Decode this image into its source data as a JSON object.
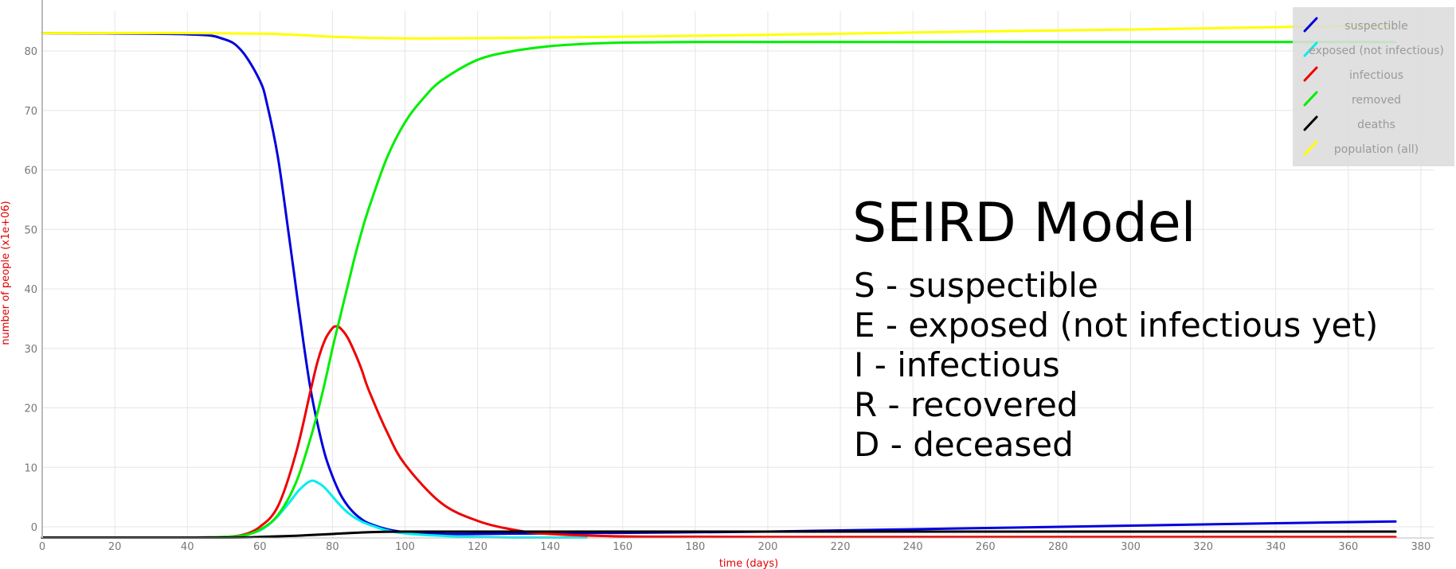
{
  "chart_data": {
    "type": "line",
    "title": "",
    "xlabel": "time (days)",
    "ylabel": "number of people (x1e+06)",
    "xlim": [
      0,
      382
    ],
    "ylim": [
      -1.8,
      86
    ],
    "xticks": [
      0,
      20,
      40,
      60,
      80,
      100,
      120,
      140,
      160,
      180,
      200,
      220,
      240,
      260,
      280,
      300,
      320,
      340,
      360,
      380
    ],
    "yticks": [
      0,
      10,
      20,
      30,
      40,
      50,
      60,
      70,
      80
    ],
    "grid": true,
    "legend_position": "top-right",
    "series": [
      {
        "name": "suspectible",
        "color": "#0000dd",
        "x": [
          0,
          40,
          50,
          55,
          60,
          62,
          65,
          68,
          70,
          72,
          74,
          76,
          78,
          80,
          82,
          84,
          86,
          88,
          90,
          95,
          100,
          110,
          120,
          140,
          200,
          250,
          300,
          340,
          373
        ],
        "y": [
          83.0,
          82.8,
          82.0,
          80.0,
          75.0,
          71.0,
          62.0,
          49.0,
          40.0,
          31.0,
          23.0,
          17.0,
          12.0,
          8.5,
          5.7,
          3.7,
          2.3,
          1.3,
          0.6,
          -0.4,
          -0.9,
          -1.2,
          -1.2,
          -1.1,
          -0.8,
          -0.3,
          0.2,
          0.6,
          0.9
        ]
      },
      {
        "name": "exposed (not infectious)",
        "color": "#00eeee",
        "x": [
          0,
          40,
          50,
          55,
          60,
          64,
          68,
          71,
          74,
          76,
          78,
          80,
          82,
          84,
          86,
          88,
          90,
          95,
          100,
          110,
          120,
          130,
          140,
          150
        ],
        "y": [
          -1.8,
          -1.8,
          -1.7,
          -1.4,
          -0.6,
          1.2,
          4.0,
          6.3,
          7.7,
          7.4,
          6.5,
          5.1,
          3.7,
          2.5,
          1.6,
          0.9,
          0.4,
          -0.6,
          -1.1,
          -1.5,
          -1.7,
          -1.8,
          -1.8,
          -1.8
        ]
      },
      {
        "name": "infectious",
        "color": "#ee0000",
        "x": [
          0,
          40,
          50,
          55,
          60,
          65,
          70,
          74,
          76,
          78,
          80,
          81,
          82,
          84,
          86,
          88,
          90,
          95,
          100,
          110,
          120,
          130,
          140,
          160,
          200,
          373
        ],
        "y": [
          -1.8,
          -1.8,
          -1.7,
          -1.4,
          0.0,
          3.5,
          12.5,
          23.0,
          28.0,
          31.5,
          33.4,
          33.7,
          33.5,
          32.0,
          29.5,
          26.5,
          23.0,
          16.0,
          10.5,
          4.0,
          1.0,
          -0.5,
          -1.2,
          -1.6,
          -1.7,
          -1.7
        ]
      },
      {
        "name": "removed",
        "color": "#00ee00",
        "x": [
          0,
          40,
          50,
          55,
          60,
          65,
          70,
          74,
          76,
          78,
          80,
          82,
          84,
          86,
          88,
          90,
          95,
          100,
          105,
          110,
          120,
          130,
          140,
          150,
          160,
          180,
          200,
          373
        ],
        "y": [
          -1.8,
          -1.8,
          -1.7,
          -1.5,
          -0.5,
          2.0,
          7.5,
          15.0,
          19.5,
          24.5,
          30.0,
          35.0,
          40.0,
          45.0,
          49.5,
          53.5,
          62.0,
          68.0,
          72.0,
          75.0,
          78.5,
          80.0,
          80.8,
          81.2,
          81.4,
          81.5,
          81.5,
          81.5
        ]
      },
      {
        "name": "deaths",
        "color": "#000000",
        "x": [
          0,
          50,
          60,
          70,
          80,
          90,
          100,
          120,
          200,
          373
        ],
        "y": [
          -1.8,
          -1.8,
          -1.7,
          -1.5,
          -1.2,
          -0.9,
          -0.8,
          -0.8,
          -0.8,
          -0.8
        ]
      },
      {
        "name": "population (all)",
        "color": "#ffff00",
        "x": [
          0,
          40,
          60,
          70,
          80,
          90,
          100,
          110,
          130,
          160,
          200,
          250,
          300,
          340,
          373
        ],
        "y": [
          83.0,
          83.0,
          82.9,
          82.7,
          82.4,
          82.2,
          82.1,
          82.1,
          82.2,
          82.4,
          82.7,
          83.2,
          83.6,
          84.0,
          84.3
        ]
      }
    ]
  },
  "annotation": {
    "title": "SEIRD Model",
    "lines": [
      "S - suspectible",
      "E - exposed (not infectious yet)",
      "I - infectious",
      "R - recovered",
      "D - deceased"
    ]
  }
}
